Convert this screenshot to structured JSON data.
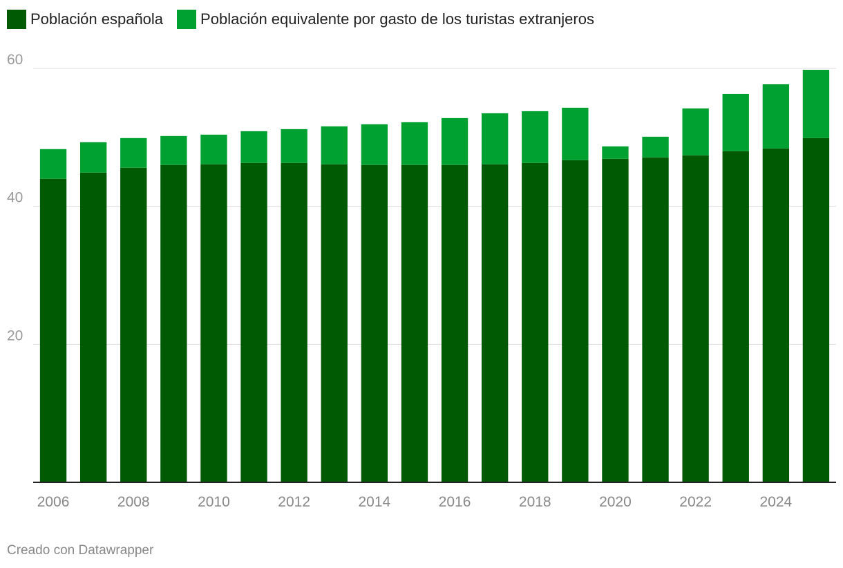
{
  "chart_data": {
    "type": "bar",
    "stacked": true,
    "categories": [
      "2006",
      "2007",
      "2008",
      "2009",
      "2010",
      "2011",
      "2012",
      "2013",
      "2014",
      "2015",
      "2016",
      "2017",
      "2018",
      "2019",
      "2020",
      "2021",
      "2022",
      "2023",
      "2024",
      "2025"
    ],
    "tick_labels": [
      "2006",
      "2008",
      "2010",
      "2012",
      "2014",
      "2016",
      "2018",
      "2020",
      "2022",
      "2024"
    ],
    "series": [
      {
        "name": "Población española",
        "color": "#005a04",
        "values": [
          44.0,
          44.9,
          45.6,
          46.0,
          46.1,
          46.3,
          46.3,
          46.1,
          46.0,
          46.0,
          46.0,
          46.1,
          46.3,
          46.7,
          46.9,
          47.1,
          47.4,
          48.0,
          48.4,
          49.9
        ]
      },
      {
        "name": "Población equivalente por gasto de los turistas extranjeros",
        "color": "#00a131",
        "values": [
          4.3,
          4.4,
          4.3,
          4.2,
          4.3,
          4.6,
          4.9,
          5.5,
          5.9,
          6.2,
          6.8,
          7.4,
          7.5,
          7.6,
          1.8,
          3.0,
          6.8,
          8.3,
          9.3,
          9.9
        ]
      }
    ],
    "yticks": [
      20,
      40,
      60
    ],
    "ylim": [
      0,
      60
    ],
    "grid": true,
    "legend_position": "top-left",
    "xlabel": "",
    "ylabel": ""
  },
  "footer": {
    "credit": "Creado con Datawrapper"
  }
}
